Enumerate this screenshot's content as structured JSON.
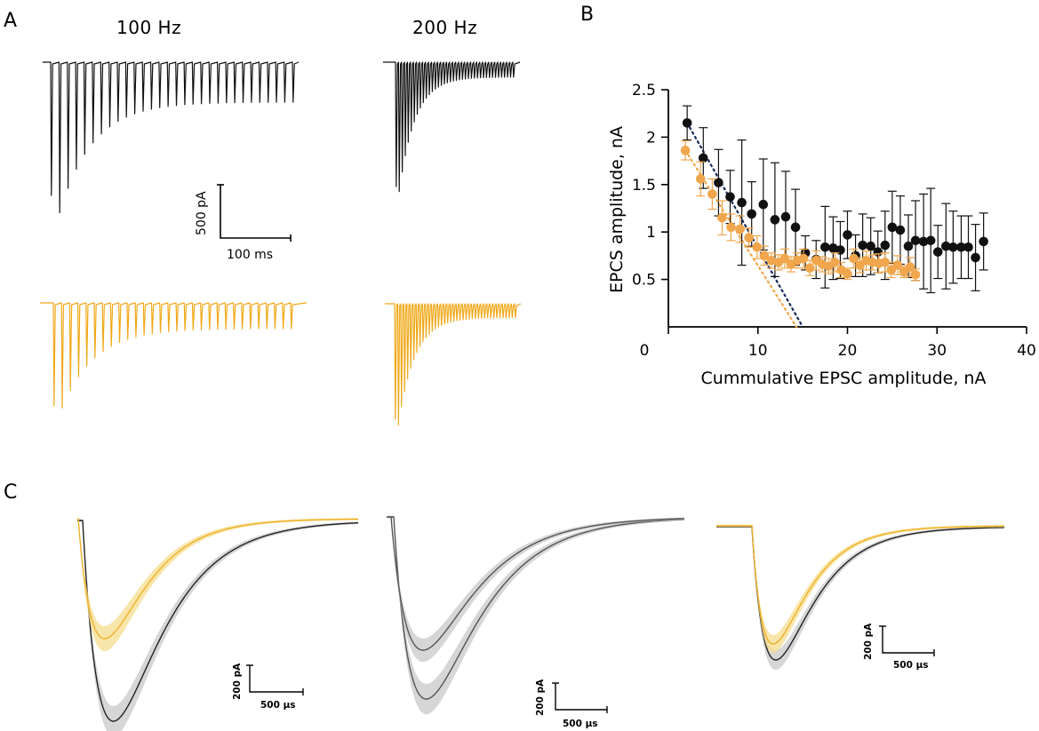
{
  "panels": {
    "a": "A",
    "b": "B",
    "c": "C"
  },
  "panel_a": {
    "conditions": [
      "100 Hz",
      "200 Hz"
    ],
    "scalebar_y": "500 pA",
    "scalebar_x": "100 ms",
    "trains": [
      {
        "name": "black-100hz",
        "color": "#111111",
        "n": 30,
        "first_amp": 1.0,
        "second_amp": 1.13,
        "steady": 0.3
      },
      {
        "name": "black-200hz",
        "color": "#111111",
        "n": 40,
        "first_amp": 1.0,
        "second_amp": 1.04,
        "steady": 0.12
      },
      {
        "name": "orange-100hz",
        "color": "#F0A818",
        "n": 30,
        "first_amp": 1.0,
        "second_amp": 1.02,
        "steady": 0.25
      },
      {
        "name": "orange-200hz",
        "color": "#F0A818",
        "n": 40,
        "first_amp": 1.0,
        "second_amp": 1.05,
        "steady": 0.12
      }
    ]
  },
  "chart_data": {
    "type": "scatter",
    "xlabel": "Cummulative EPSC amplitude, nA",
    "ylabel": "EPCS amplitude, nA",
    "xlim": [
      0,
      40
    ],
    "ylim": [
      0,
      2.5
    ],
    "xticks": [
      0,
      10,
      20,
      30,
      40
    ],
    "yticks": [
      0.5,
      1,
      1.5,
      2,
      2.5
    ],
    "series": [
      {
        "name": "black",
        "color": "#111111",
        "x": [
          2.1,
          3.9,
          5.6,
          6.9,
          8.2,
          9.3,
          10.6,
          11.9,
          13.1,
          14.2,
          15.3,
          16.5,
          17.5,
          18.4,
          19.2,
          20.0,
          20.9,
          21.7,
          22.6,
          23.4,
          24.2,
          25.0,
          25.9,
          26.8,
          27.6,
          28.5,
          29.3,
          30.1,
          31.0,
          31.8,
          32.7,
          33.5,
          34.3,
          35.2
        ],
        "y": [
          2.15,
          1.78,
          1.52,
          1.37,
          1.31,
          1.19,
          1.29,
          1.13,
          1.16,
          1.05,
          0.78,
          0.71,
          0.84,
          0.83,
          0.81,
          0.97,
          0.75,
          0.86,
          0.85,
          0.79,
          0.86,
          1.05,
          1.02,
          0.85,
          0.91,
          0.9,
          0.91,
          0.79,
          0.85,
          0.84,
          0.84,
          0.84,
          0.73,
          0.9
        ],
        "err": [
          0.18,
          0.32,
          0.35,
          0.28,
          0.66,
          0.34,
          0.48,
          0.6,
          0.48,
          0.4,
          0.18,
          0.2,
          0.43,
          0.33,
          0.3,
          0.25,
          0.22,
          0.33,
          0.3,
          0.22,
          0.36,
          0.38,
          0.36,
          0.33,
          0.42,
          0.5,
          0.55,
          0.28,
          0.45,
          0.38,
          0.33,
          0.33,
          0.35,
          0.3
        ]
      },
      {
        "name": "orange",
        "color": "#F0A64C",
        "x": [
          1.9,
          3.6,
          4.9,
          6.0,
          7.0,
          8.0,
          9.0,
          9.9,
          10.7,
          11.5,
          12.3,
          13.0,
          13.7,
          14.4,
          15.1,
          15.8,
          16.5,
          17.2,
          17.9,
          18.6,
          19.3,
          20.0,
          20.7,
          21.4,
          22.1,
          22.8,
          23.5,
          24.2,
          24.9,
          25.6,
          26.3,
          27.0,
          27.6
        ],
        "y": [
          1.86,
          1.56,
          1.4,
          1.15,
          1.05,
          1.03,
          0.94,
          0.84,
          0.75,
          0.7,
          0.68,
          0.72,
          0.66,
          0.7,
          0.72,
          0.62,
          0.7,
          0.66,
          0.64,
          0.68,
          0.6,
          0.56,
          0.72,
          0.65,
          0.7,
          0.68,
          0.67,
          0.68,
          0.6,
          0.65,
          0.58,
          0.63,
          0.55
        ],
        "err": [
          0.1,
          0.18,
          0.16,
          0.18,
          0.14,
          0.14,
          0.1,
          0.12,
          0.1,
          0.08,
          0.08,
          0.1,
          0.08,
          0.08,
          0.1,
          0.08,
          0.1,
          0.08,
          0.08,
          0.1,
          0.08,
          0.06,
          0.1,
          0.08,
          0.1,
          0.08,
          0.1,
          0.1,
          0.08,
          0.1,
          0.06,
          0.1,
          0.06
        ]
      }
    ],
    "fits": [
      {
        "name": "black-fit",
        "color": "#1a2a5a",
        "x": [
          2.1,
          15.0
        ],
        "y": [
          2.15,
          0.0
        ]
      },
      {
        "name": "orange-fit",
        "color": "#F0A64C",
        "x": [
          1.9,
          14.3
        ],
        "y": [
          1.86,
          0.0
        ]
      }
    ]
  },
  "panel_c": {
    "scalebars": [
      {
        "y_label": "200 pA",
        "x_label": "500 µs"
      },
      {
        "y_label": "200 pA",
        "x_label": "500 µs"
      },
      {
        "y_label": "200 pA",
        "x_label": "500 µs"
      }
    ],
    "colors": {
      "black": "#222222",
      "orange": "#EFB22A",
      "gray_band": "#c8c8c8",
      "orange_band": "#f6dc8e"
    }
  }
}
